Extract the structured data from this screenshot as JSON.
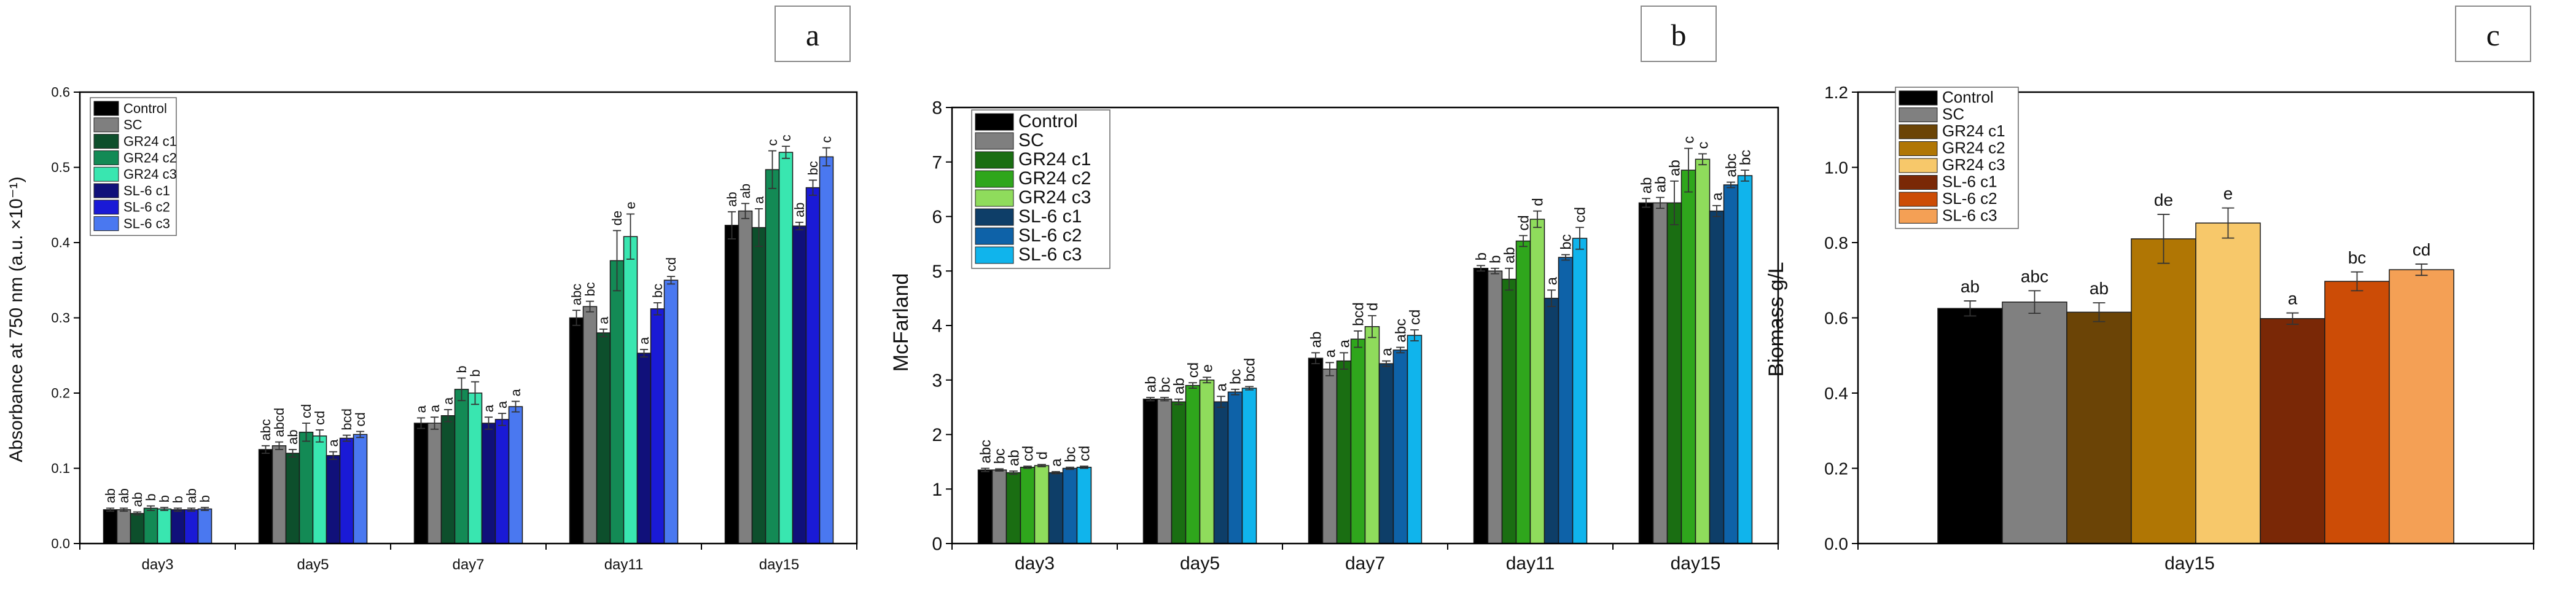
{
  "figure": {
    "colors": {
      "a": [
        "#000000",
        "#7f7f7f",
        "#0d4f2c",
        "#138a55",
        "#39e6b0",
        "#10107a",
        "#1a1ad6",
        "#4a78f0"
      ],
      "b": [
        "#000000",
        "#7f7f7f",
        "#1a6e12",
        "#2fa61c",
        "#8fdc5c",
        "#0e3e68",
        "#0e62a8",
        "#10b4ec"
      ],
      "c": [
        "#000000",
        "#808080",
        "#6b4406",
        "#b07604",
        "#f7c86a",
        "#7a2806",
        "#cc4c06",
        "#f4a055"
      ]
    }
  },
  "chart_data": [
    {
      "type": "bar",
      "panel_label": "a",
      "title": "",
      "xlabel": "",
      "ylabel": "Absorbance at 750 nm (a.u. ×10⁻¹)",
      "ylim": [
        0,
        0.6
      ],
      "yticks": [
        "0.0",
        "0.1",
        "0.2",
        "0.3",
        "0.4",
        "0.5",
        "0.6"
      ],
      "categories": [
        "day3",
        "day5",
        "day7",
        "day11",
        "day15"
      ],
      "legend_position": "top-left",
      "series": [
        {
          "name": "Control",
          "values": [
            0.045,
            0.125,
            0.16,
            0.3,
            0.423
          ],
          "errors": [
            0.002,
            0.005,
            0.007,
            0.01,
            0.018
          ],
          "letters": [
            "ab",
            "abc",
            "a",
            "abc",
            "ab"
          ]
        },
        {
          "name": "SC",
          "values": [
            0.045,
            0.13,
            0.16,
            0.315,
            0.442
          ],
          "errors": [
            0.002,
            0.005,
            0.008,
            0.007,
            0.01
          ],
          "letters": [
            "ab",
            "abcd",
            "a",
            "bc",
            "ab"
          ]
        },
        {
          "name": "GR24 c1",
          "values": [
            0.04,
            0.12,
            0.17,
            0.28,
            0.42
          ],
          "errors": [
            0.002,
            0.005,
            0.008,
            0.005,
            0.025
          ],
          "letters": [
            "ab",
            "ab",
            "a",
            "a",
            "a"
          ]
        },
        {
          "name": "GR24 c2",
          "values": [
            0.047,
            0.148,
            0.205,
            0.376,
            0.497
          ],
          "errors": [
            0.003,
            0.012,
            0.015,
            0.04,
            0.025
          ],
          "letters": [
            "b",
            "cd",
            "b",
            "de",
            "c"
          ]
        },
        {
          "name": "GR24 c3",
          "values": [
            0.046,
            0.143,
            0.2,
            0.408,
            0.52
          ],
          "errors": [
            0.002,
            0.008,
            0.015,
            0.03,
            0.008
          ],
          "letters": [
            "b",
            "cd",
            "b",
            "e",
            "c"
          ]
        },
        {
          "name": "SL-6 c1",
          "values": [
            0.045,
            0.117,
            0.16,
            0.253,
            0.422
          ],
          "errors": [
            0.002,
            0.005,
            0.008,
            0.005,
            0.005
          ],
          "letters": [
            "b",
            "a",
            "a",
            "a",
            "ab"
          ]
        },
        {
          "name": "SL-6 c2",
          "values": [
            0.045,
            0.14,
            0.165,
            0.312,
            0.473
          ],
          "errors": [
            0.002,
            0.004,
            0.008,
            0.008,
            0.01
          ],
          "letters": [
            "ab",
            "bcd",
            "a",
            "bc",
            "bc"
          ]
        },
        {
          "name": "SL-6 c3",
          "values": [
            0.046,
            0.145,
            0.182,
            0.35,
            0.514
          ],
          "errors": [
            0.002,
            0.004,
            0.007,
            0.005,
            0.012
          ],
          "letters": [
            "b",
            "cd",
            "a",
            "cd",
            "c"
          ]
        }
      ]
    },
    {
      "type": "bar",
      "panel_label": "b",
      "title": "",
      "xlabel": "",
      "ylabel": "McFarland",
      "ylim": [
        0,
        8
      ],
      "yticks": [
        "0",
        "1",
        "2",
        "3",
        "4",
        "5",
        "6",
        "7",
        "8"
      ],
      "categories": [
        "day3",
        "day5",
        "day7",
        "day11",
        "day15"
      ],
      "legend_position": "top-left",
      "series": [
        {
          "name": "Control",
          "values": [
            1.35,
            2.65,
            3.4,
            5.05,
            6.25
          ],
          "errors": [
            0.03,
            0.03,
            0.1,
            0.05,
            0.08
          ],
          "letters": [
            "abc",
            "ab",
            "ab",
            "b",
            "ab"
          ]
        },
        {
          "name": "SC",
          "values": [
            1.35,
            2.65,
            3.2,
            5.0,
            6.25
          ],
          "errors": [
            0.02,
            0.03,
            0.12,
            0.05,
            0.1
          ],
          "letters": [
            "bc",
            "bc",
            "a",
            "b",
            "ab"
          ]
        },
        {
          "name": "GR24 c1",
          "values": [
            1.3,
            2.6,
            3.35,
            4.85,
            6.25
          ],
          "errors": [
            0.03,
            0.05,
            0.15,
            0.2,
            0.4
          ],
          "letters": [
            "ab",
            "ab",
            "a",
            "ab",
            "ab"
          ]
        },
        {
          "name": "GR24 c2",
          "values": [
            1.4,
            2.9,
            3.75,
            5.55,
            6.85
          ],
          "errors": [
            0.02,
            0.05,
            0.15,
            0.1,
            0.4
          ],
          "letters": [
            "cd",
            "cd",
            "bcd",
            "cd",
            "c"
          ]
        },
        {
          "name": "GR24 c3",
          "values": [
            1.43,
            3.0,
            3.98,
            5.95,
            7.05
          ],
          "errors": [
            0.02,
            0.05,
            0.2,
            0.15,
            0.1
          ],
          "letters": [
            "d",
            "e",
            "d",
            "d",
            "c"
          ]
        },
        {
          "name": "SL-6 c1",
          "values": [
            1.3,
            2.6,
            3.3,
            4.5,
            6.1
          ],
          "errors": [
            0.02,
            0.1,
            0.05,
            0.15,
            0.1
          ],
          "letters": [
            "a",
            "a",
            "a",
            "a",
            "a"
          ]
        },
        {
          "name": "SL-6 c2",
          "values": [
            1.38,
            2.78,
            3.55,
            5.25,
            6.58
          ],
          "errors": [
            0.02,
            0.05,
            0.05,
            0.05,
            0.05
          ],
          "letters": [
            "bc",
            "bc",
            "abc",
            "bc",
            "abc"
          ]
        },
        {
          "name": "SL-6 c3",
          "values": [
            1.4,
            2.85,
            3.82,
            5.6,
            6.75
          ],
          "errors": [
            0.02,
            0.03,
            0.1,
            0.2,
            0.1
          ],
          "letters": [
            "cd",
            "bcd",
            "cd",
            "cd",
            "bc"
          ]
        }
      ]
    },
    {
      "type": "bar",
      "panel_label": "c",
      "title": "",
      "xlabel": "day15",
      "ylabel": "Biomass g/L",
      "ylim": [
        0,
        1.2
      ],
      "yticks": [
        "0.0",
        "0.2",
        "0.4",
        "0.6",
        "0.8",
        "1.0",
        "1.2"
      ],
      "categories": [
        "day15"
      ],
      "legend_position": "top-left",
      "series": [
        {
          "name": "Control",
          "values": [
            0.625
          ],
          "errors": [
            0.02
          ],
          "letters": [
            "ab"
          ]
        },
        {
          "name": "SC",
          "values": [
            0.642
          ],
          "errors": [
            0.03
          ],
          "letters": [
            "abc"
          ]
        },
        {
          "name": "GR24 c1",
          "values": [
            0.615
          ],
          "errors": [
            0.025
          ],
          "letters": [
            "ab"
          ]
        },
        {
          "name": "GR24 c2",
          "values": [
            0.81
          ],
          "errors": [
            0.065
          ],
          "letters": [
            "de"
          ]
        },
        {
          "name": "GR24 c3",
          "values": [
            0.852
          ],
          "errors": [
            0.04
          ],
          "letters": [
            "e"
          ]
        },
        {
          "name": "SL-6 c1",
          "values": [
            0.598
          ],
          "errors": [
            0.015
          ],
          "letters": [
            "a"
          ]
        },
        {
          "name": "SL-6 c2",
          "values": [
            0.697
          ],
          "errors": [
            0.025
          ],
          "letters": [
            "bc"
          ]
        },
        {
          "name": "SL-6 c3",
          "values": [
            0.728
          ],
          "errors": [
            0.015
          ],
          "letters": [
            "cd"
          ]
        }
      ]
    }
  ]
}
